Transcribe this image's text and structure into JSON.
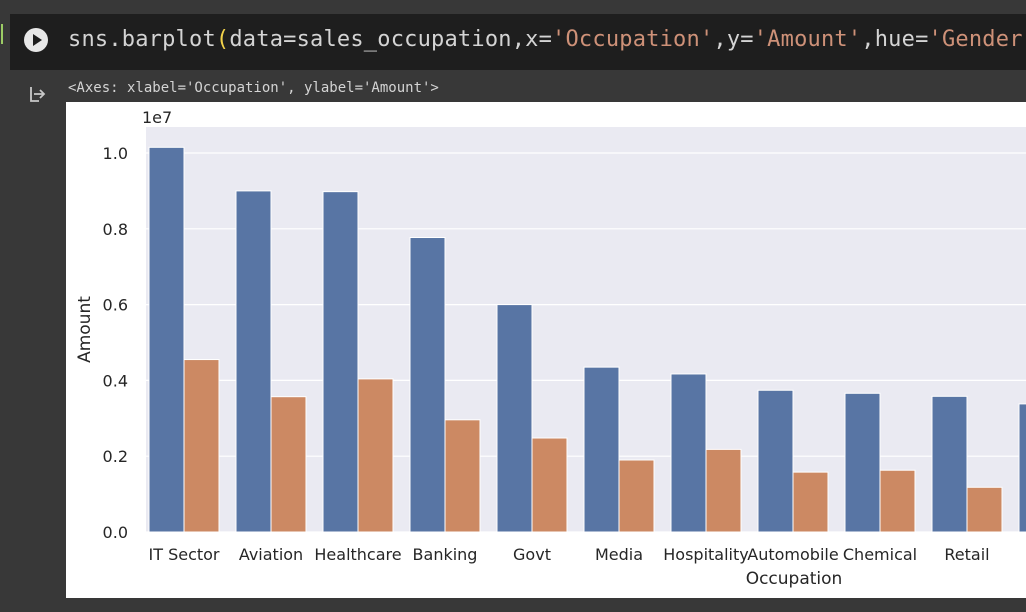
{
  "cell": {
    "code_prefix": "sns.barplot",
    "code_open": "(",
    "code_arg1": "data=sales_occupation,x=",
    "code_str1": "'Occupation'",
    "code_arg2": ",y=",
    "code_str2": "'Amount'",
    "code_arg3": ",hue=",
    "code_str3": "'Gender'",
    "code_close": ")",
    "run_icon": "play-icon",
    "output_icon": "output-arrow-icon",
    "output_text": "<Axes: xlabel='Occupation', ylabel='Amount'>"
  },
  "colors": {
    "background": "#383838",
    "code_bg": "#1e1e1e",
    "plot_bg": "#eaeaf2",
    "series_blue": "#5875a4",
    "series_orange": "#cc8963",
    "string_token": "#ce9178"
  },
  "chart_data": {
    "type": "bar",
    "xlabel": "Occupation",
    "ylabel": "Amount",
    "offset_label": "1e7",
    "ylim": [
      0,
      1.0
    ],
    "y_ticks": [
      "0.0",
      "0.2",
      "0.4",
      "0.6",
      "0.8",
      "1.0"
    ],
    "grid": true,
    "categories": [
      "IT Sector",
      "Aviation",
      "Healthcare",
      "Banking",
      "Govt",
      "Media",
      "Hospitality",
      "Automobile",
      "Chemical",
      "Retail"
    ],
    "series": [
      {
        "color": "#5875a4",
        "values": [
          1.015,
          0.9,
          0.898,
          0.777,
          0.6,
          0.435,
          0.417,
          0.374,
          0.366,
          0.358
        ]
      },
      {
        "color": "#cc8963",
        "values": [
          0.455,
          0.357,
          0.404,
          0.296,
          0.248,
          0.19,
          0.218,
          0.158,
          0.163,
          0.118
        ]
      }
    ],
    "partial_bar_value": 0.338
  }
}
